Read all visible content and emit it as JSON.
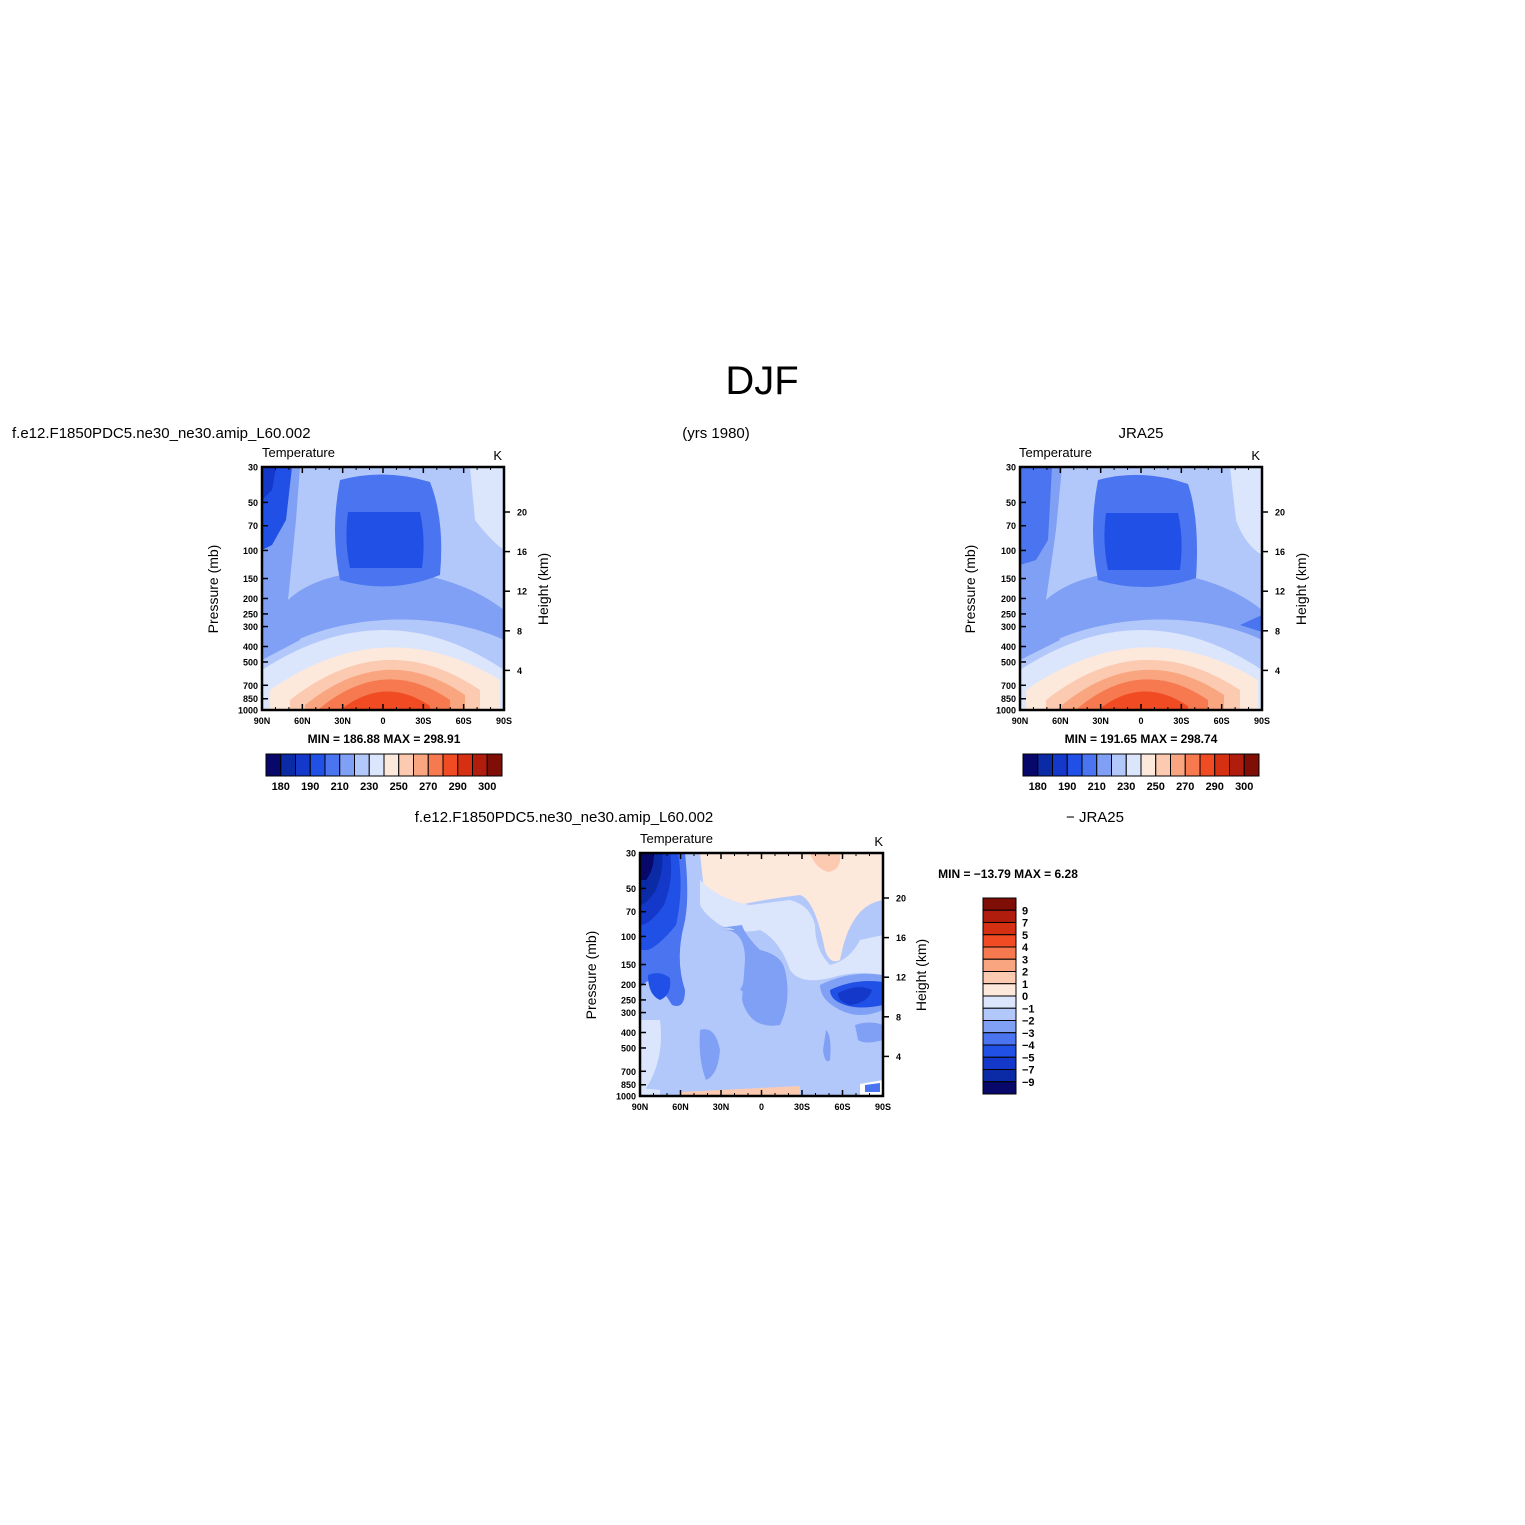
{
  "figure": {
    "title": "DJF",
    "left_header": "f.e12.F1850PDC5.ne30_ne30.amip_L60.002",
    "center_header": "(yrs  1980)",
    "right_header": "JRA25",
    "diff_header_left": "f.e12.F1850PDC5.ne30_ne30.amip_L60.002",
    "diff_header_right": "−  JRA25"
  },
  "chart_data": [
    {
      "type": "heatmap",
      "panel": "model",
      "title": "Temperature",
      "units": "K",
      "xlabel": "",
      "ylabel": "Pressure  (mb)",
      "y2label": "Height  (km)",
      "x_ticks": [
        "90N",
        "60N",
        "30N",
        "0",
        "30S",
        "60S",
        "90S"
      ],
      "y_ticks": [
        "30",
        "50",
        "70",
        "100",
        "150",
        "200",
        "250",
        "300",
        "400",
        "500",
        "700",
        "850",
        "1000"
      ],
      "y2_ticks": [
        "20",
        "16",
        "12",
        "8",
        "4"
      ],
      "stats": "MIN = 186.88   MAX = 298.91",
      "min": 186.88,
      "max": 298.91,
      "colorbar_labels": [
        "180",
        "190",
        "210",
        "230",
        "250",
        "270",
        "290",
        "300"
      ],
      "colorbar_colors": [
        "#08086b",
        "#0b2aa6",
        "#1438c9",
        "#2150e6",
        "#4a74f0",
        "#7fa0f5",
        "#b3c8fa",
        "#dbe6fd",
        "#fde8dc",
        "#fbcab0",
        "#f9a580",
        "#f6794f",
        "#f04b23",
        "#d63013",
        "#b01d0c",
        "#7f0e06"
      ]
    },
    {
      "type": "heatmap",
      "panel": "obs",
      "title": "Temperature",
      "units": "K",
      "xlabel": "",
      "ylabel": "Pressure  (mb)",
      "y2label": "Height  (km)",
      "x_ticks": [
        "90N",
        "60N",
        "30N",
        "0",
        "30S",
        "60S",
        "90S"
      ],
      "y_ticks": [
        "30",
        "50",
        "70",
        "100",
        "150",
        "200",
        "250",
        "300",
        "400",
        "500",
        "700",
        "850",
        "1000"
      ],
      "y2_ticks": [
        "20",
        "16",
        "12",
        "8",
        "4"
      ],
      "stats": "MIN = 191.65   MAX = 298.74",
      "min": 191.65,
      "max": 298.74,
      "colorbar_labels": [
        "180",
        "190",
        "210",
        "230",
        "250",
        "270",
        "290",
        "300"
      ],
      "colorbar_colors": [
        "#08086b",
        "#0b2aa6",
        "#1438c9",
        "#2150e6",
        "#4a74f0",
        "#7fa0f5",
        "#b3c8fa",
        "#dbe6fd",
        "#fde8dc",
        "#fbcab0",
        "#f9a580",
        "#f6794f",
        "#f04b23",
        "#d63013",
        "#b01d0c",
        "#7f0e06"
      ]
    },
    {
      "type": "heatmap",
      "panel": "difference",
      "title": "Temperature",
      "units": "K",
      "xlabel": "",
      "ylabel": "Pressure  (mb)",
      "y2label": "Height  (km)",
      "x_ticks": [
        "90N",
        "60N",
        "30N",
        "0",
        "30S",
        "60S",
        "90S"
      ],
      "y_ticks": [
        "30",
        "50",
        "70",
        "100",
        "150",
        "200",
        "250",
        "300",
        "400",
        "500",
        "700",
        "850",
        "1000"
      ],
      "y2_ticks": [
        "20",
        "16",
        "12",
        "8",
        "4"
      ],
      "stats": "MIN = −13.79   MAX =    6.28",
      "min": -13.79,
      "max": 6.28,
      "colorbar_labels": [
        "9",
        "7",
        "5",
        "4",
        "3",
        "2",
        "1",
        "0",
        "−1",
        "−2",
        "−3",
        "−4",
        "−5",
        "−7",
        "−9"
      ],
      "colorbar_colors": [
        "#7f0e06",
        "#b01d0c",
        "#d63013",
        "#f04b23",
        "#f6794f",
        "#f9a580",
        "#fbcab0",
        "#fde8dc",
        "#dbe6fd",
        "#b3c8fa",
        "#7fa0f5",
        "#4a74f0",
        "#2150e6",
        "#1438c9",
        "#0b2aa6",
        "#08086b"
      ]
    }
  ]
}
